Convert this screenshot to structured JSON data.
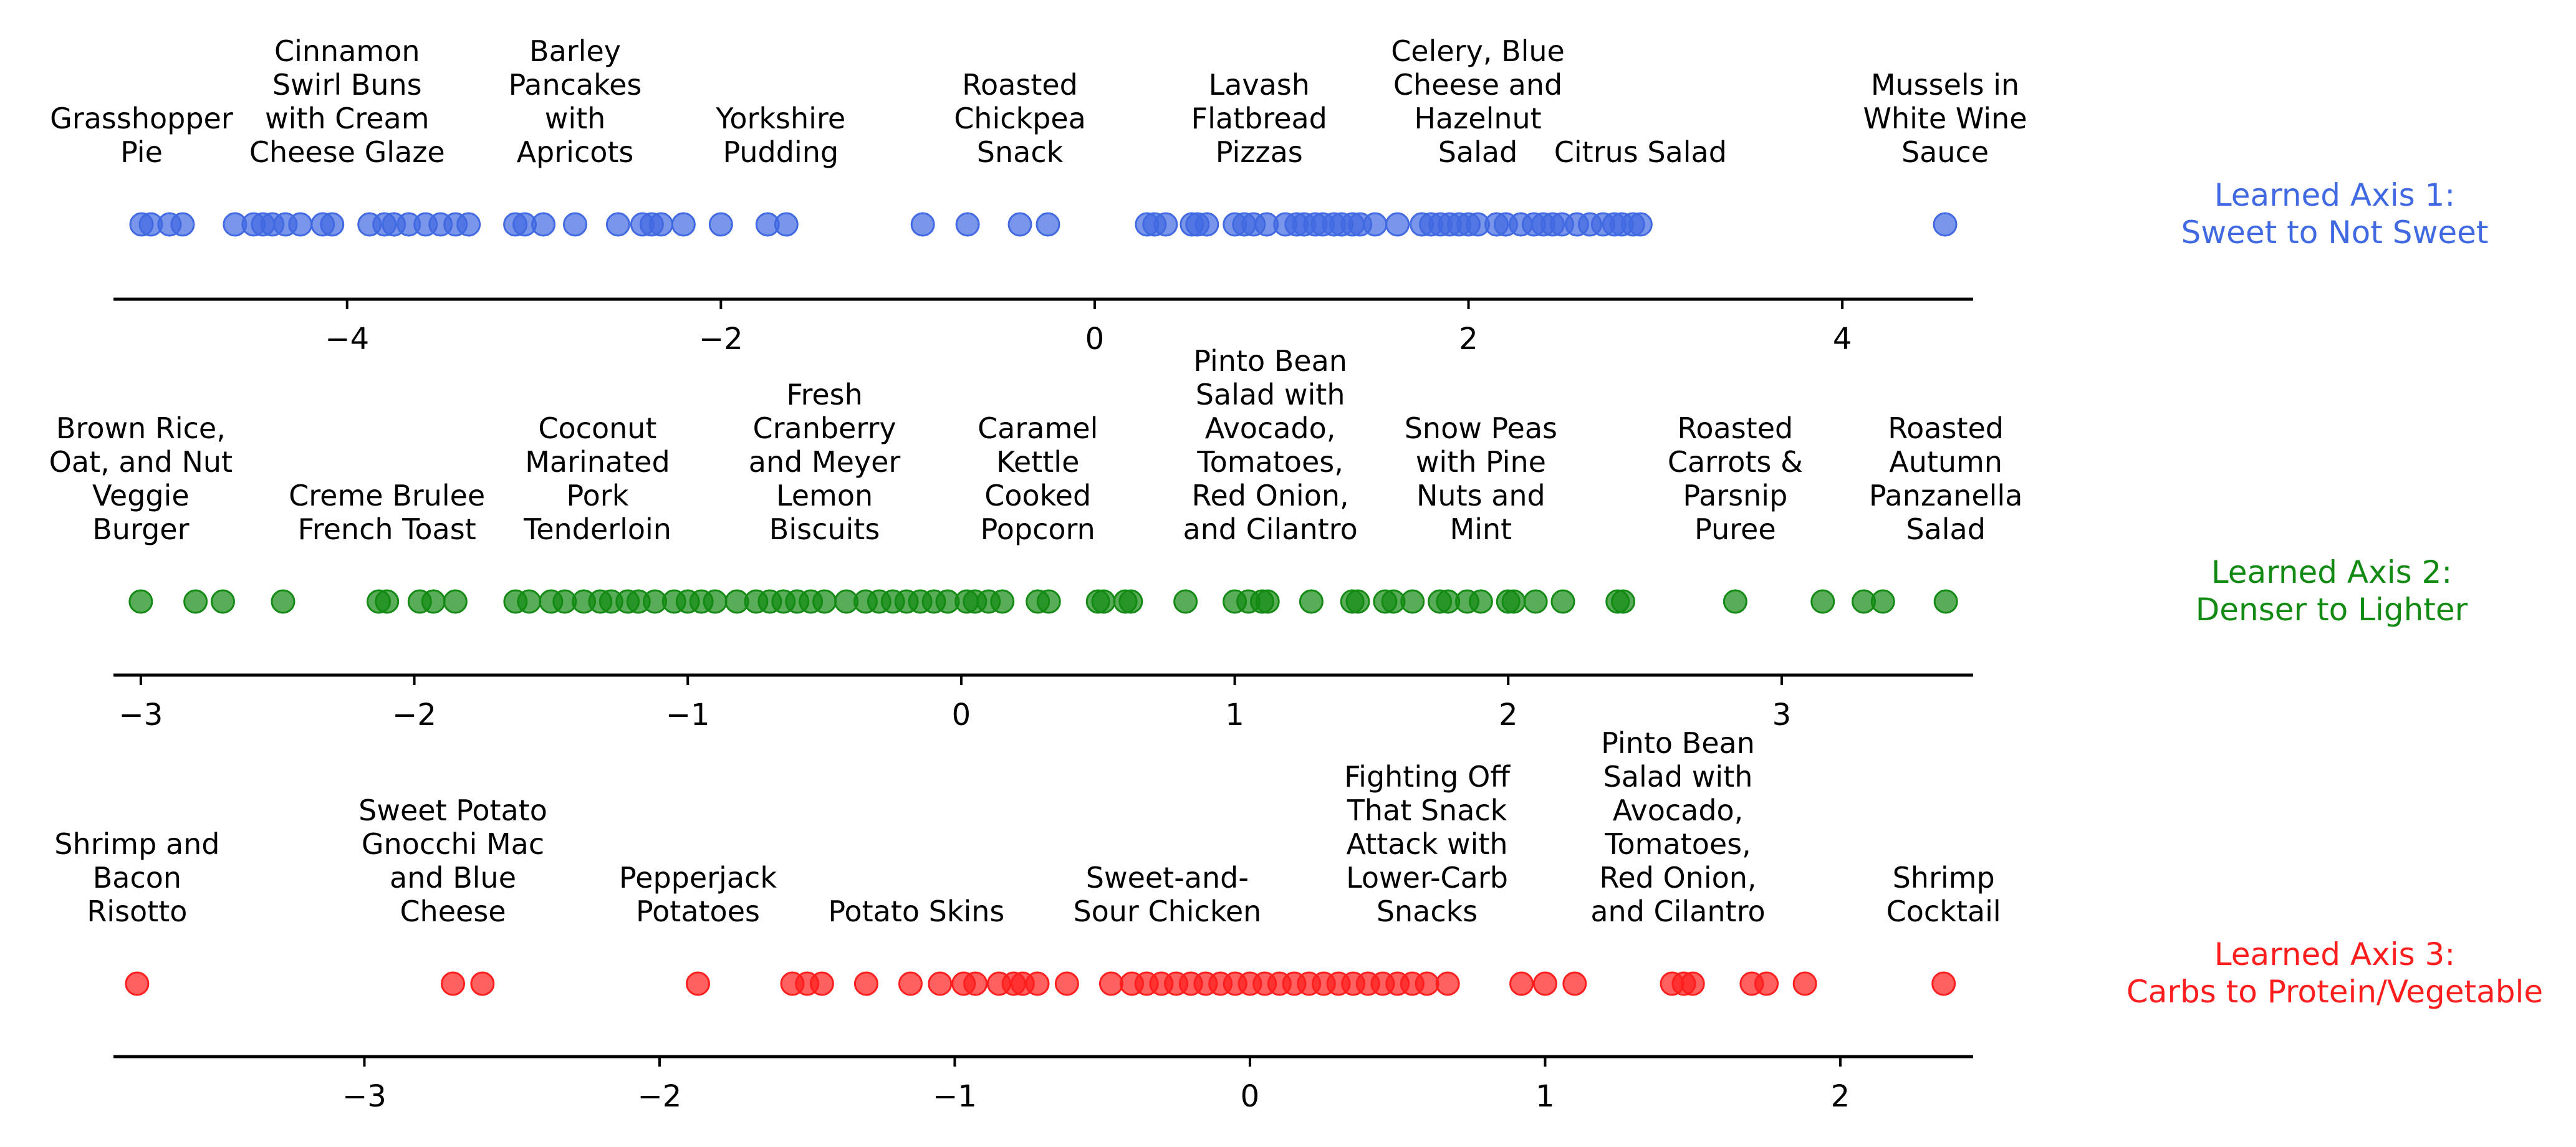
{
  "chart_data": [
    {
      "type": "scatter",
      "name": "Learned Axis 1",
      "axis_title": [
        "Learned Axis 1:",
        "Sweet to Not Sweet"
      ],
      "color": "#4169e1",
      "xlim": [
        -5.25,
        4.7
      ],
      "ticks": [
        -4,
        -2,
        0,
        2,
        4
      ],
      "tick_labels": [
        "−4",
        "−2",
        "0",
        "2",
        "4"
      ],
      "values": [
        -5.1,
        -5.05,
        -4.95,
        -4.88,
        -4.6,
        -4.5,
        -4.45,
        -4.4,
        -4.33,
        -4.25,
        -4.13,
        -4.08,
        -3.88,
        -3.8,
        -3.75,
        -3.67,
        -3.58,
        -3.5,
        -3.42,
        -3.35,
        -3.1,
        -3.05,
        -2.95,
        -2.78,
        -2.55,
        -2.42,
        -2.37,
        -2.32,
        -2.2,
        -2.0,
        -1.75,
        -1.65,
        -0.92,
        -0.68,
        -0.4,
        -0.25,
        0.28,
        0.32,
        0.38,
        0.52,
        0.55,
        0.6,
        0.75,
        0.8,
        0.85,
        0.92,
        1.02,
        1.08,
        1.12,
        1.18,
        1.22,
        1.28,
        1.32,
        1.38,
        1.42,
        1.5,
        1.62,
        1.75,
        1.8,
        1.85,
        1.9,
        1.95,
        2.0,
        2.05,
        2.15,
        2.2,
        2.28,
        2.35,
        2.4,
        2.45,
        2.5,
        2.58,
        2.65,
        2.72,
        2.78,
        2.82,
        2.88,
        2.92,
        4.55
      ],
      "labels": [
        {
          "x": -5.1,
          "lines": [
            "Grasshopper",
            "Pie"
          ]
        },
        {
          "x": -4.0,
          "lines": [
            "Cinnamon",
            "Swirl Buns",
            "with Cream",
            "Cheese Glaze"
          ]
        },
        {
          "x": -2.78,
          "lines": [
            "Barley",
            "Pancakes",
            "with",
            "Apricots"
          ]
        },
        {
          "x": -1.68,
          "lines": [
            "Yorkshire",
            "Pudding"
          ]
        },
        {
          "x": -0.4,
          "lines": [
            "Roasted",
            "Chickpea",
            "Snack"
          ]
        },
        {
          "x": 0.88,
          "lines": [
            "Lavash",
            "Flatbread",
            "Pizzas"
          ]
        },
        {
          "x": 2.05,
          "lines": [
            "Celery, Blue",
            "Cheese and",
            "Hazelnut",
            "Salad"
          ]
        },
        {
          "x": 2.92,
          "lines": [
            "Citrus Salad"
          ]
        },
        {
          "x": 4.55,
          "lines": [
            "Mussels in",
            "White Wine",
            "Sauce"
          ]
        }
      ]
    },
    {
      "type": "scatter",
      "name": "Learned Axis 2",
      "axis_title": [
        "Learned Axis 2:",
        "Denser to Lighter"
      ],
      "color": "#138a13",
      "xlim": [
        -3.1,
        3.7
      ],
      "ticks": [
        -3,
        -2,
        -1,
        0,
        1,
        2,
        3
      ],
      "tick_labels": [
        "−3",
        "−2",
        "−1",
        "0",
        "1",
        "2",
        "3"
      ],
      "values": [
        -3.0,
        -2.8,
        -2.7,
        -2.48,
        -2.13,
        -2.1,
        -1.98,
        -1.93,
        -1.85,
        -1.63,
        -1.58,
        -1.5,
        -1.45,
        -1.38,
        -1.32,
        -1.28,
        -1.22,
        -1.18,
        -1.12,
        -1.05,
        -1.0,
        -0.95,
        -0.9,
        -0.82,
        -0.75,
        -0.7,
        -0.65,
        -0.6,
        -0.55,
        -0.5,
        -0.42,
        -0.35,
        -0.3,
        -0.25,
        -0.2,
        -0.15,
        -0.1,
        -0.05,
        0.02,
        0.05,
        0.1,
        0.15,
        0.28,
        0.32,
        0.5,
        0.52,
        0.6,
        0.62,
        0.82,
        1.0,
        1.05,
        1.1,
        1.12,
        1.28,
        1.43,
        1.45,
        1.55,
        1.58,
        1.65,
        1.75,
        1.78,
        1.85,
        1.9,
        2.0,
        2.02,
        2.1,
        2.2,
        2.4,
        2.42,
        2.83,
        3.15,
        3.3,
        3.37,
        3.6
      ],
      "labels": [
        {
          "x": -3.0,
          "lines": [
            "Brown Rice,",
            "Oat, and Nut",
            "Veggie",
            "Burger"
          ]
        },
        {
          "x": -2.1,
          "lines": [
            "Creme Brulee",
            "French Toast"
          ]
        },
        {
          "x": -1.33,
          "lines": [
            "Coconut",
            "Marinated",
            "Pork",
            "Tenderloin"
          ]
        },
        {
          "x": -0.5,
          "lines": [
            "Fresh",
            "Cranberry",
            "and Meyer",
            "Lemon",
            "Biscuits"
          ]
        },
        {
          "x": 0.28,
          "lines": [
            "Caramel",
            "Kettle",
            "Cooked",
            "Popcorn"
          ]
        },
        {
          "x": 1.13,
          "lines": [
            "Pinto Bean",
            "Salad with",
            "Avocado,",
            "Tomatoes,",
            "Red Onion,",
            "and Cilantro"
          ]
        },
        {
          "x": 1.9,
          "lines": [
            "Snow Peas",
            "with Pine",
            "Nuts and",
            "Mint"
          ]
        },
        {
          "x": 2.83,
          "lines": [
            "Roasted",
            "Carrots &",
            "Parsnip",
            "Puree"
          ]
        },
        {
          "x": 3.6,
          "lines": [
            "Roasted",
            "Autumn",
            "Panzanella",
            "Salad"
          ]
        }
      ]
    },
    {
      "type": "scatter",
      "name": "Learned Axis 3",
      "axis_title": [
        "Learned Axis 3:",
        "Carbs to Protein/Vegetable"
      ],
      "color": "#ff1e1e",
      "xlim": [
        -3.85,
        2.45
      ],
      "ticks": [
        -3,
        -2,
        -1,
        0,
        1,
        2
      ],
      "tick_labels": [
        "−3",
        "−2",
        "−1",
        "0",
        "1",
        "2"
      ],
      "values": [
        -3.77,
        -2.7,
        -2.6,
        -1.87,
        -1.55,
        -1.5,
        -1.45,
        -1.3,
        -1.15,
        -1.05,
        -0.97,
        -0.93,
        -0.85,
        -0.8,
        -0.77,
        -0.72,
        -0.62,
        -0.47,
        -0.4,
        -0.35,
        -0.3,
        -0.25,
        -0.2,
        -0.15,
        -0.1,
        -0.05,
        0.0,
        0.05,
        0.1,
        0.15,
        0.2,
        0.25,
        0.3,
        0.35,
        0.4,
        0.45,
        0.5,
        0.55,
        0.6,
        0.67,
        0.92,
        1.0,
        1.1,
        1.43,
        1.47,
        1.5,
        1.7,
        1.75,
        1.88,
        2.35
      ],
      "labels": [
        {
          "x": -3.77,
          "lines": [
            "Shrimp and",
            "Bacon",
            "Risotto"
          ]
        },
        {
          "x": -2.7,
          "lines": [
            "Sweet Potato",
            "Gnocchi Mac",
            "and Blue",
            "Cheese"
          ]
        },
        {
          "x": -1.87,
          "lines": [
            "Pepperjack",
            "Potatoes"
          ]
        },
        {
          "x": -1.13,
          "lines": [
            "Potato Skins"
          ]
        },
        {
          "x": -0.28,
          "lines": [
            "Sweet-and-",
            "Sour Chicken"
          ]
        },
        {
          "x": 0.6,
          "lines": [
            "Fighting Off",
            "That Snack",
            "Attack with",
            "Lower-Carb",
            "Snacks"
          ]
        },
        {
          "x": 1.45,
          "lines": [
            "Pinto Bean",
            "Salad with",
            "Avocado,",
            "Tomatoes,",
            "Red Onion,",
            "and Cilantro"
          ]
        },
        {
          "x": 2.35,
          "lines": [
            "Shrimp",
            "Cocktail"
          ]
        }
      ]
    }
  ]
}
